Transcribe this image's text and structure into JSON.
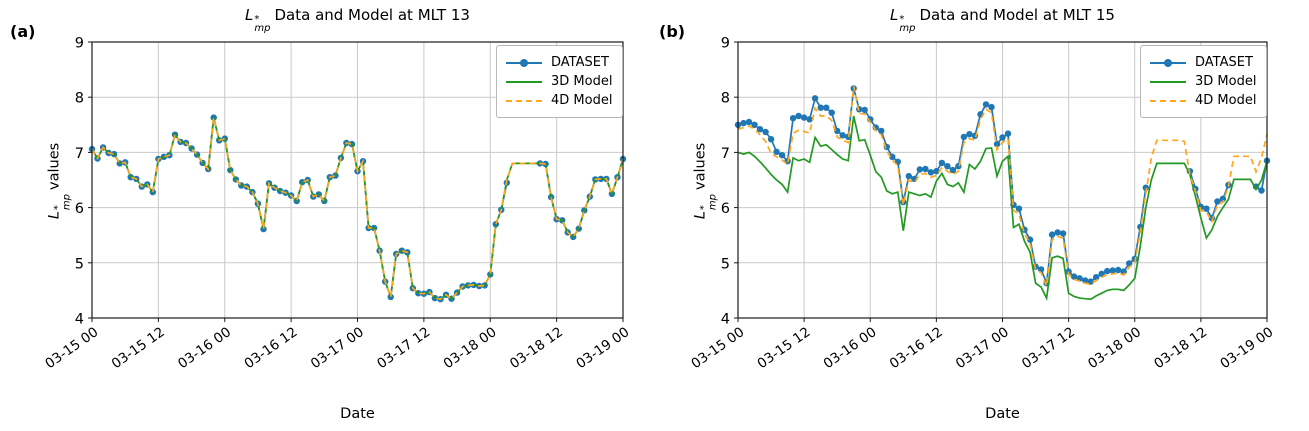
{
  "colors": {
    "dataset": "#1f77b4",
    "model3d": "#229922",
    "model4d": "#ffa51e",
    "grid": "#c9c9c9",
    "frame": "#1a1a1a",
    "text": "#000000"
  },
  "legend": {
    "items": [
      {
        "label": "DATASET"
      },
      {
        "label": "3D Model"
      },
      {
        "label": "4D Model"
      }
    ]
  },
  "axis": {
    "xlabel": "Date",
    "ylabel": {
      "sym": "L",
      "sup": "*",
      "sub": "mp",
      "rest": "values"
    },
    "yticks": [
      4,
      5,
      6,
      7,
      8,
      9
    ],
    "xticks": [
      0,
      12,
      24,
      36,
      48,
      60,
      72,
      84,
      96
    ],
    "xtick_labels": [
      "03-15 00",
      "03-15 12",
      "03-16 00",
      "03-16 12",
      "03-17 00",
      "03-17 12",
      "03-18 00",
      "03-18 12",
      "03-19 00"
    ]
  },
  "chart_data": [
    {
      "type": "line",
      "panel": "(a)",
      "title": {
        "sym": "L",
        "sup": "*",
        "sub": "mp",
        "rest": "Data and Model at MLT 13"
      },
      "xlabel": "Date",
      "ylim": [
        4,
        9
      ],
      "xlim_hours": [
        0,
        96
      ],
      "grid": true,
      "legend_position": "upper right",
      "series": [
        {
          "name": "DATASET",
          "color_key": "dataset",
          "line_style": "solid",
          "marker": "circle",
          "values": [
            7.06,
            6.89,
            7.09,
            6.99,
            6.97,
            6.8,
            6.82,
            6.55,
            6.52,
            6.38,
            6.42,
            6.28,
            6.88,
            6.92,
            6.95,
            7.32,
            7.19,
            7.17,
            7.07,
            6.96,
            6.81,
            6.7,
            7.63,
            7.22,
            7.25,
            6.68,
            6.51,
            6.4,
            6.38,
            6.28,
            6.07,
            5.61,
            6.44,
            6.36,
            6.3,
            6.27,
            6.22,
            6.12,
            6.46,
            6.5,
            6.2,
            6.24,
            6.12,
            6.55,
            6.58,
            6.9,
            7.17,
            7.15,
            6.66,
            6.84,
            5.63,
            5.63,
            5.22,
            4.66,
            4.38,
            5.16,
            5.22,
            5.19,
            4.54,
            4.45,
            4.44,
            4.47,
            4.36,
            4.34,
            4.42,
            4.35,
            4.46,
            4.57,
            4.59,
            4.6,
            4.58,
            4.59,
            4.79,
            5.7,
            5.96,
            6.45,
            null,
            null,
            null,
            null,
            null,
            6.8,
            6.79,
            6.19,
            5.79,
            5.77,
            5.55,
            5.47,
            5.62,
            5.95,
            6.2,
            6.51,
            6.52,
            6.52,
            6.25,
            6.55,
            6.88
          ]
        },
        {
          "name": "3D Model",
          "color_key": "model3d",
          "line_style": "solid",
          "marker": "none",
          "values": [
            7.06,
            6.89,
            7.09,
            6.99,
            6.97,
            6.8,
            6.82,
            6.55,
            6.52,
            6.38,
            6.42,
            6.28,
            6.88,
            6.92,
            6.95,
            7.32,
            7.19,
            7.17,
            7.07,
            6.96,
            6.81,
            6.7,
            7.63,
            7.22,
            7.25,
            6.68,
            6.51,
            6.4,
            6.38,
            6.28,
            6.07,
            5.61,
            6.44,
            6.36,
            6.3,
            6.27,
            6.22,
            6.12,
            6.46,
            6.5,
            6.2,
            6.24,
            6.12,
            6.55,
            6.58,
            6.9,
            7.17,
            7.15,
            6.66,
            6.84,
            5.63,
            5.63,
            5.22,
            4.66,
            4.38,
            5.16,
            5.22,
            5.19,
            4.54,
            4.45,
            4.44,
            4.47,
            4.36,
            4.34,
            4.42,
            4.35,
            4.46,
            4.57,
            4.59,
            4.6,
            4.58,
            4.59,
            4.79,
            5.7,
            5.96,
            6.5,
            6.8,
            6.8,
            6.8,
            6.8,
            6.8,
            6.8,
            6.79,
            6.19,
            5.79,
            5.77,
            5.55,
            5.47,
            5.62,
            5.95,
            6.2,
            6.51,
            6.52,
            6.52,
            6.25,
            6.55,
            6.88
          ]
        },
        {
          "name": "4D Model",
          "color_key": "model4d",
          "line_style": "dashed",
          "marker": "none",
          "values": [
            7.06,
            6.89,
            7.09,
            6.99,
            6.97,
            6.8,
            6.82,
            6.55,
            6.52,
            6.38,
            6.42,
            6.28,
            6.88,
            6.92,
            6.95,
            7.32,
            7.19,
            7.17,
            7.07,
            6.96,
            6.81,
            6.7,
            7.63,
            7.22,
            7.25,
            6.68,
            6.51,
            6.4,
            6.38,
            6.28,
            6.07,
            5.61,
            6.44,
            6.36,
            6.3,
            6.27,
            6.22,
            6.12,
            6.46,
            6.5,
            6.2,
            6.24,
            6.12,
            6.55,
            6.58,
            6.9,
            7.17,
            7.15,
            6.66,
            6.84,
            5.63,
            5.63,
            5.22,
            4.66,
            4.38,
            5.16,
            5.22,
            5.19,
            4.54,
            4.45,
            4.44,
            4.47,
            4.36,
            4.34,
            4.42,
            4.35,
            4.46,
            4.57,
            4.59,
            4.6,
            4.58,
            4.59,
            4.79,
            5.7,
            5.96,
            6.5,
            6.8,
            6.8,
            6.8,
            6.8,
            6.8,
            6.8,
            6.79,
            6.19,
            5.79,
            5.77,
            5.55,
            5.47,
            5.62,
            5.95,
            6.2,
            6.51,
            6.52,
            6.52,
            6.25,
            6.55,
            6.88
          ]
        }
      ]
    },
    {
      "type": "line",
      "panel": "(b)",
      "title": {
        "sym": "L",
        "sup": "*",
        "sub": "mp",
        "rest": "Data and Model at MLT 15"
      },
      "xlabel": "Date",
      "ylim": [
        4,
        9
      ],
      "xlim_hours": [
        0,
        96
      ],
      "grid": true,
      "legend_position": "upper right",
      "series": [
        {
          "name": "DATASET",
          "color_key": "dataset",
          "line_style": "solid",
          "marker": "circle",
          "values": [
            7.5,
            7.53,
            7.55,
            7.5,
            7.42,
            7.37,
            7.24,
            7.01,
            6.95,
            6.84,
            7.62,
            7.66,
            7.63,
            7.6,
            7.98,
            7.81,
            7.81,
            7.72,
            7.39,
            7.31,
            7.28,
            8.16,
            7.78,
            7.77,
            7.6,
            7.45,
            7.39,
            7.1,
            6.92,
            6.83,
            6.1,
            6.57,
            6.52,
            6.69,
            6.7,
            6.64,
            6.66,
            6.81,
            6.75,
            6.68,
            6.75,
            7.28,
            7.33,
            7.3,
            7.69,
            7.87,
            7.82,
            7.15,
            7.27,
            7.34,
            6.05,
            5.98,
            5.6,
            5.42,
            4.93,
            4.88,
            4.63,
            5.51,
            5.55,
            5.53,
            4.84,
            4.75,
            4.72,
            4.68,
            4.66,
            4.74,
            4.8,
            4.85,
            4.86,
            4.87,
            4.84,
            4.99,
            5.07,
            5.65,
            6.36,
            null,
            null,
            null,
            null,
            null,
            null,
            null,
            6.66,
            6.34,
            6.01,
            5.98,
            5.81,
            6.11,
            6.16,
            6.41,
            null,
            null,
            null,
            null,
            6.38,
            6.31,
            6.85
          ]
        },
        {
          "name": "3D Model",
          "color_key": "model3d",
          "line_style": "solid",
          "marker": "none",
          "values": [
            7.0,
            6.97,
            7.0,
            6.93,
            6.83,
            6.72,
            6.6,
            6.5,
            6.42,
            6.28,
            6.9,
            6.85,
            6.88,
            6.82,
            7.27,
            7.11,
            7.14,
            7.05,
            6.96,
            6.88,
            6.85,
            7.66,
            7.21,
            7.23,
            6.95,
            6.65,
            6.55,
            6.3,
            6.25,
            6.28,
            5.58,
            6.28,
            6.25,
            6.22,
            6.25,
            6.19,
            6.48,
            6.62,
            6.42,
            6.38,
            6.45,
            6.28,
            6.78,
            6.7,
            6.84,
            7.07,
            7.08,
            6.57,
            6.84,
            6.93,
            5.64,
            5.7,
            5.39,
            5.19,
            4.63,
            4.56,
            4.36,
            5.09,
            5.12,
            5.08,
            4.45,
            4.39,
            4.36,
            4.35,
            4.34,
            4.4,
            4.45,
            4.5,
            4.52,
            4.52,
            4.5,
            4.6,
            4.72,
            5.3,
            6.0,
            6.5,
            6.8,
            6.8,
            6.8,
            6.8,
            6.8,
            6.8,
            6.6,
            6.21,
            5.81,
            5.45,
            5.6,
            5.84,
            6.0,
            6.15,
            6.51,
            6.51,
            6.51,
            6.51,
            6.33,
            6.5,
            6.84
          ]
        },
        {
          "name": "4D Model",
          "color_key": "model4d",
          "line_style": "dashed",
          "marker": "none",
          "values": [
            7.42,
            7.45,
            7.48,
            7.42,
            7.32,
            7.2,
            6.98,
            6.92,
            6.86,
            6.78,
            7.35,
            7.4,
            7.38,
            7.35,
            7.8,
            7.66,
            7.66,
            7.58,
            7.28,
            7.22,
            7.18,
            8.2,
            7.7,
            7.7,
            7.55,
            7.4,
            7.32,
            7.02,
            6.86,
            6.76,
            6.05,
            6.5,
            6.45,
            6.6,
            6.62,
            6.55,
            6.58,
            6.72,
            6.66,
            6.6,
            6.66,
            7.18,
            7.25,
            7.22,
            7.6,
            7.78,
            7.72,
            7.05,
            7.18,
            7.25,
            5.95,
            5.88,
            5.52,
            5.35,
            4.88,
            4.82,
            4.58,
            5.42,
            5.48,
            5.45,
            4.8,
            4.7,
            4.67,
            4.63,
            4.61,
            4.68,
            4.74,
            4.79,
            4.8,
            4.81,
            4.78,
            4.92,
            5.0,
            5.55,
            6.25,
            6.9,
            7.22,
            7.22,
            7.22,
            7.22,
            7.22,
            7.2,
            6.6,
            6.3,
            5.95,
            5.92,
            5.75,
            6.05,
            6.1,
            6.38,
            6.93,
            6.93,
            6.93,
            6.93,
            6.65,
            6.9,
            7.33
          ]
        }
      ]
    }
  ]
}
